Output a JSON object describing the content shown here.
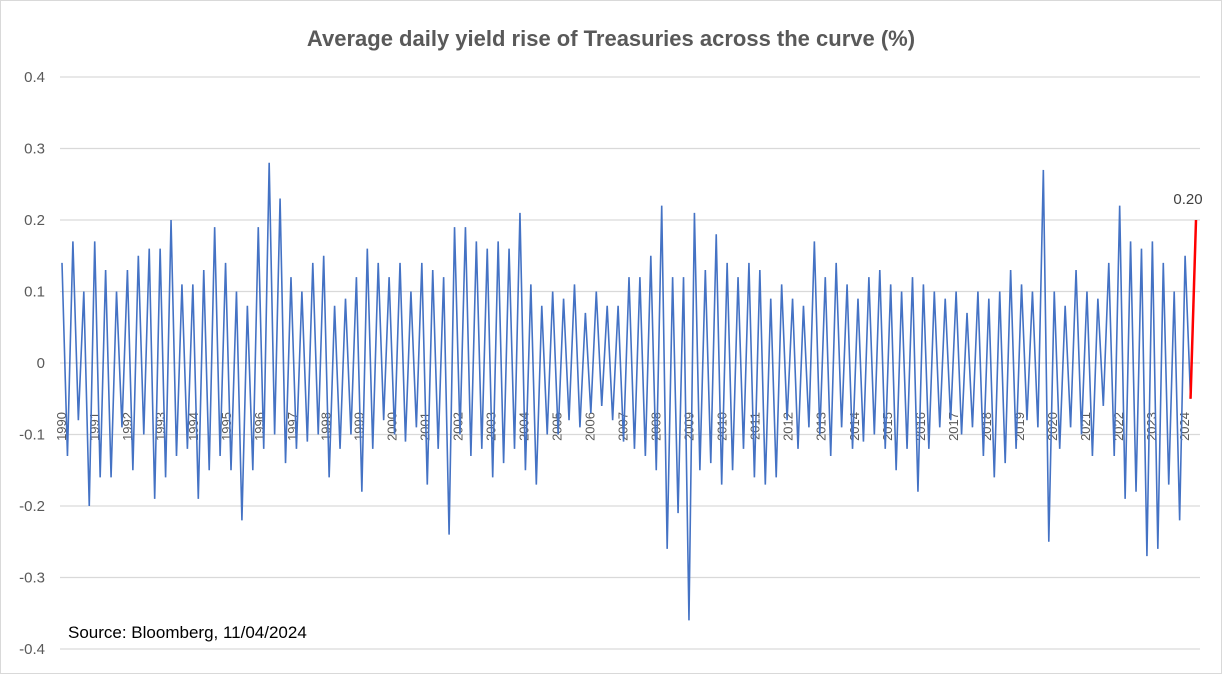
{
  "chart_data": {
    "type": "line",
    "title": "Average daily yield rise of Treasuries across the curve (%)",
    "xlabel": "",
    "ylabel": "",
    "ylim": [
      -0.4,
      0.4
    ],
    "yticks": [
      "0.4",
      "0.3",
      "0.2",
      "0.1",
      "0",
      "-0.1",
      "-0.2",
      "-0.3",
      "-0.4"
    ],
    "ytick_values": [
      0.4,
      0.3,
      0.2,
      0.1,
      0,
      -0.1,
      -0.2,
      -0.3,
      -0.4
    ],
    "xlim": [
      1990,
      2024.33
    ],
    "xticks": [
      "1990",
      "1991",
      "1992",
      "1993",
      "1994",
      "1995",
      "1996",
      "1997",
      "1998",
      "1999",
      "2000",
      "2001",
      "2002",
      "2003",
      "2004",
      "2005",
      "2006",
      "2007",
      "2008",
      "2009",
      "2010",
      "2011",
      "2012",
      "2013",
      "2014",
      "2015",
      "2016",
      "2017",
      "2018",
      "2019",
      "2020",
      "2021",
      "2022",
      "2023",
      "2024"
    ],
    "grid": "horizontal",
    "series": [
      {
        "name": "Average daily yield rise",
        "color": "#4472c4",
        "values": [
          0.14,
          -0.13,
          0.17,
          -0.08,
          0.1,
          -0.2,
          0.17,
          -0.16,
          0.13,
          -0.16,
          0.1,
          -0.09,
          0.13,
          -0.15,
          0.15,
          -0.1,
          0.16,
          -0.19,
          0.16,
          -0.16,
          0.2,
          -0.13,
          0.11,
          -0.12,
          0.11,
          -0.19,
          0.13,
          -0.15,
          0.19,
          -0.13,
          0.14,
          -0.15,
          0.1,
          -0.22,
          0.08,
          -0.15,
          0.19,
          -0.12,
          0.28,
          -0.1,
          0.23,
          -0.14,
          0.12,
          -0.12,
          0.1,
          -0.11,
          0.14,
          -0.1,
          0.15,
          -0.16,
          0.08,
          -0.12,
          0.09,
          -0.1,
          0.12,
          -0.18,
          0.16,
          -0.12,
          0.14,
          -0.08,
          0.12,
          -0.1,
          0.14,
          -0.11,
          0.1,
          -0.09,
          0.14,
          -0.17,
          0.13,
          -0.12,
          0.12,
          -0.24,
          0.19,
          -0.1,
          0.19,
          -0.13,
          0.17,
          -0.12,
          0.16,
          -0.16,
          0.17,
          -0.14,
          0.16,
          -0.12,
          0.21,
          -0.15,
          0.11,
          -0.17,
          0.08,
          -0.1,
          0.1,
          -0.1,
          0.09,
          -0.08,
          0.11,
          -0.09,
          0.07,
          -0.07,
          0.1,
          -0.06,
          0.08,
          -0.08,
          0.08,
          -0.11,
          0.12,
          -0.12,
          0.12,
          -0.13,
          0.15,
          -0.15,
          0.22,
          -0.26,
          0.12,
          -0.21,
          0.12,
          -0.36,
          0.21,
          -0.15,
          0.13,
          -0.14,
          0.18,
          -0.17,
          0.14,
          -0.15,
          0.12,
          -0.12,
          0.14,
          -0.16,
          0.13,
          -0.17,
          0.09,
          -0.16,
          0.11,
          -0.08,
          0.09,
          -0.12,
          0.08,
          -0.09,
          0.17,
          -0.1,
          0.12,
          -0.13,
          0.14,
          -0.09,
          0.11,
          -0.12,
          0.09,
          -0.11,
          0.12,
          -0.1,
          0.13,
          -0.12,
          0.11,
          -0.15,
          0.1,
          -0.12,
          0.12,
          -0.18,
          0.11,
          -0.12,
          0.1,
          -0.09,
          0.09,
          -0.08,
          0.1,
          -0.1,
          0.07,
          -0.09,
          0.1,
          -0.13,
          0.09,
          -0.16,
          0.1,
          -0.14,
          0.13,
          -0.12,
          0.11,
          -0.08,
          0.1,
          -0.09,
          0.27,
          -0.25,
          0.1,
          -0.12,
          0.08,
          -0.09,
          0.13,
          -0.1,
          0.1,
          -0.13,
          0.09,
          -0.06,
          0.14,
          -0.13,
          0.22,
          -0.19,
          0.17,
          -0.18,
          0.16,
          -0.27,
          0.17,
          -0.26,
          0.14,
          -0.17,
          0.1,
          -0.22,
          0.15,
          -0.05,
          0.2
        ]
      }
    ],
    "highlight": {
      "color": "#ff0000",
      "value": 0.2,
      "label": "0.20"
    },
    "annotations": [
      "Source: Bloomberg, 11/04/2024"
    ]
  }
}
